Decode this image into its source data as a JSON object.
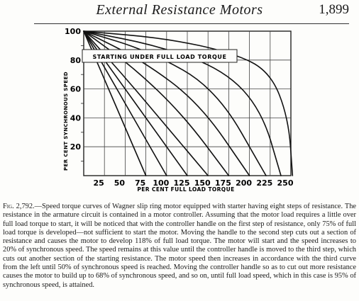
{
  "header": {
    "title": "External Resistance Motors",
    "page_number": "1,899"
  },
  "chart_data": {
    "type": "line",
    "title": "STARTING UNDER FULL LOAD TORQUE",
    "xlabel": "PER CENT FULL LOAD TORQUE",
    "ylabel": "PER CENT SYNCHRONOUS SPEED",
    "xlim": [
      0,
      250
    ],
    "ylim": [
      0,
      100
    ],
    "x_ticks": [
      "25",
      "50",
      "75",
      "100",
      "125",
      "150",
      "175",
      "200",
      "225",
      "250"
    ],
    "y_ticks": [
      "20",
      "40",
      "60",
      "80",
      "100"
    ],
    "grid": true,
    "series": [
      {
        "x": [
          0,
          75
        ],
        "y": [
          100,
          0
        ]
      },
      {
        "x": [
          0,
          100
        ],
        "y": [
          100,
          0
        ]
      },
      {
        "x": [
          0,
          125
        ],
        "y": [
          100,
          0
        ]
      },
      {
        "x": [
          0,
          50,
          100,
          150
        ],
        "y": [
          100,
          68,
          34,
          0
        ]
      },
      {
        "x": [
          0,
          60,
          120,
          175
        ],
        "y": [
          100,
          75,
          42,
          0
        ]
      },
      {
        "x": [
          0,
          70,
          140,
          200
        ],
        "y": [
          100,
          80,
          50,
          0
        ]
      },
      {
        "x": [
          0,
          80,
          160,
          220
        ],
        "y": [
          100,
          86,
          60,
          0
        ]
      },
      {
        "x": [
          0,
          90,
          170,
          215,
          238
        ],
        "y": [
          100,
          90,
          73,
          45,
          0
        ]
      },
      {
        "x": [
          0,
          100,
          180,
          225,
          247,
          252
        ],
        "y": [
          100,
          95,
          85,
          72,
          40,
          0
        ]
      }
    ]
  },
  "caption": {
    "label": "Fig. 2,792.",
    "text": "—Speed torque curves of Wagner slip ring motor equipped with starter having eight steps of resistance. The resistance in the armature circuit is contained in a motor controller. Assuming that the motor load requires a little over full load torque to start, it will be noticed that with the controller handle on the first step of resistance, only 75% of full load torque is developed—not sufficient to start the motor. Moving the handle to the second step cuts out a section of resistance and causes the motor to develop 118% of full load torque. The motor will start and the speed increases to 20% of synchronous speed. The speed remains at this value until the controller handle is moved to the third step, which cuts out another section of the starting resistance. The motor speed then increases in accordance with the third curve from the left until 50% of synchronous speed is reached. Moving the controller handle so as to cut out more resistance causes the motor to build up to 68% of synchronous speed, and so on, until full load speed, which in this case is 95% of synchronous speed, is attained."
  }
}
